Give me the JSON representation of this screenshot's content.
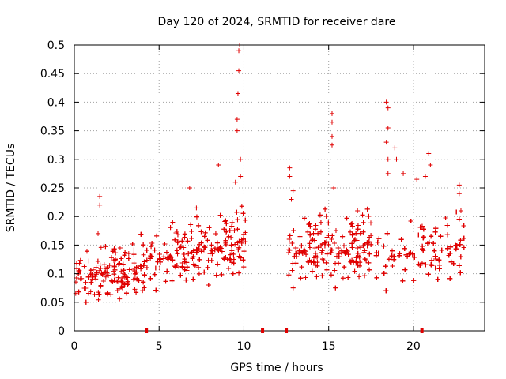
{
  "chart_data": {
    "type": "scatter",
    "title": "Day 120 of 2024, SRMTID for receiver dare",
    "xlabel": "GPS time / hours",
    "ylabel": "SRMTID / TECUs",
    "xlim": [
      0,
      24.2
    ],
    "ylim": [
      0,
      0.5
    ],
    "x_ticks": [
      "0",
      "5",
      "10",
      "15",
      "20"
    ],
    "y_ticks": [
      "0",
      "0.05",
      "0.1",
      "0.15",
      "0.2",
      "0.25",
      "0.3",
      "0.35",
      "0.4",
      "0.45",
      "0.5"
    ],
    "grid": true,
    "marker": "+",
    "color": "#e00000",
    "gap_markers_x": [
      4.25,
      11.1,
      12.5,
      20.5
    ],
    "series": [
      {
        "name": "SRMTID",
        "segments": [
          {
            "from": 0.0,
            "to": 4.3,
            "center": 0.098,
            "spread": 0.04,
            "peaks": [
              [
                1.5,
                0.235
              ],
              [
                1.5,
                0.22
              ],
              [
                1.4,
                0.17
              ],
              [
                2.7,
                0.145
              ]
            ]
          },
          {
            "from": 4.3,
            "to": 7.5,
            "center": 0.125,
            "spread": 0.045,
            "peaks": [
              [
                6.8,
                0.25
              ],
              [
                7.2,
                0.215
              ],
              [
                5.8,
                0.19
              ]
            ]
          },
          {
            "from": 7.5,
            "to": 10.1,
            "center": 0.14,
            "spread": 0.05,
            "peaks": [
              [
                8.5,
                0.29
              ],
              [
                9.5,
                0.26
              ],
              [
                9.6,
                0.35
              ],
              [
                9.6,
                0.37
              ],
              [
                9.65,
                0.415
              ],
              [
                9.7,
                0.455
              ],
              [
                9.7,
                0.49
              ],
              [
                9.75,
                0.5
              ],
              [
                9.8,
                0.3
              ],
              [
                9.8,
                0.27
              ]
            ]
          },
          {
            "from": 12.5,
            "to": 15.0,
            "center": 0.135,
            "spread": 0.05,
            "peaks": [
              [
                12.7,
                0.285
              ],
              [
                12.7,
                0.27
              ],
              [
                12.9,
                0.245
              ],
              [
                12.8,
                0.23
              ]
            ]
          },
          {
            "from": 15.0,
            "to": 17.5,
            "center": 0.135,
            "spread": 0.05,
            "peaks": [
              [
                15.2,
                0.38
              ],
              [
                15.2,
                0.365
              ],
              [
                15.2,
                0.34
              ],
              [
                15.2,
                0.325
              ],
              [
                15.3,
                0.25
              ],
              [
                16.7,
                0.21
              ]
            ]
          },
          {
            "from": 17.5,
            "to": 23.0,
            "center": 0.13,
            "spread": 0.05,
            "peaks": [
              [
                18.4,
                0.4
              ],
              [
                18.5,
                0.39
              ],
              [
                18.5,
                0.355
              ],
              [
                18.4,
                0.33
              ],
              [
                18.5,
                0.3
              ],
              [
                18.5,
                0.275
              ],
              [
                18.9,
                0.32
              ],
              [
                19.0,
                0.3
              ],
              [
                19.4,
                0.275
              ],
              [
                20.9,
                0.31
              ],
              [
                21.0,
                0.29
              ],
              [
                20.7,
                0.27
              ],
              [
                20.2,
                0.265
              ],
              [
                22.7,
                0.255
              ],
              [
                22.7,
                0.24
              ],
              [
                22.8,
                0.21
              ]
            ]
          }
        ]
      }
    ]
  }
}
